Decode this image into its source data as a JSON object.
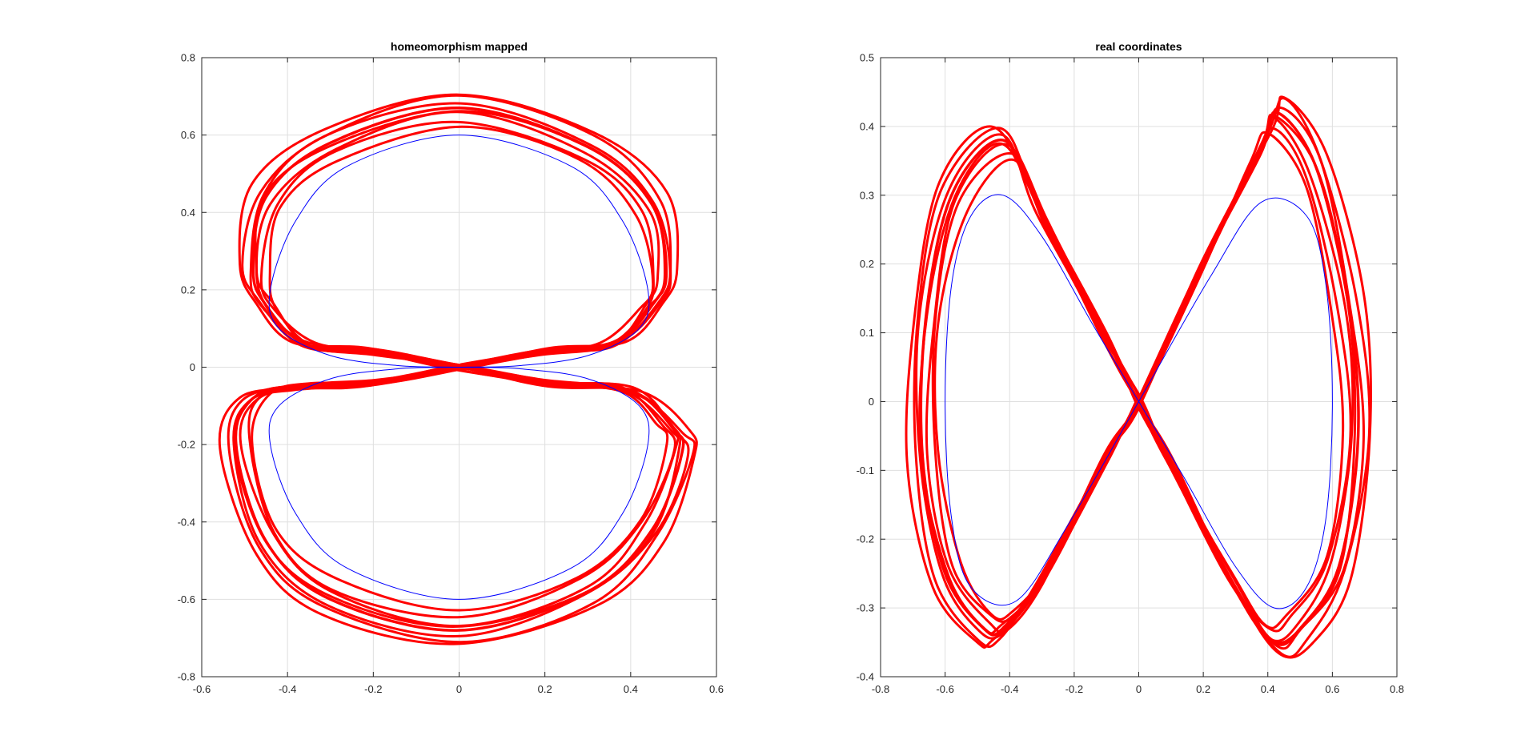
{
  "chart_data": [
    {
      "type": "line",
      "title": "homeomorphism mapped",
      "xlabel": "",
      "ylabel": "",
      "xlim": [
        -0.6,
        0.6
      ],
      "ylim": [
        -0.8,
        0.8
      ],
      "xticks": [
        -0.6,
        -0.4,
        -0.2,
        0,
        0.2,
        0.4,
        0.6
      ],
      "yticks": [
        -0.8,
        -0.6,
        -0.4,
        -0.2,
        0,
        0.2,
        0.4,
        0.6,
        0.8
      ],
      "xtick_labels": [
        "-0.6",
        "-0.4",
        "-0.2",
        "0",
        "0.2",
        "0.4",
        "0.6"
      ],
      "ytick_labels": [
        "-0.8",
        "-0.6",
        "-0.4",
        "-0.2",
        "0",
        "0.2",
        "0.4",
        "0.6",
        "0.8"
      ],
      "grid": true,
      "series": [
        {
          "color": "#ff0000",
          "style": "noisy closed loops around reference curve",
          "x": [
            0.0,
            0.2,
            0.36,
            0.45,
            0.48,
            0.45,
            0.3,
            0.0,
            -0.3,
            -0.45,
            -0.48,
            -0.45,
            -0.36,
            -0.2,
            0.0,
            0.2,
            0.4,
            0.5,
            0.52,
            0.45,
            0.3,
            0.0,
            -0.3,
            -0.45,
            -0.52,
            -0.48,
            -0.36,
            -0.2,
            0.0
          ],
          "y": [
            0.0,
            0.04,
            0.06,
            0.16,
            0.24,
            0.42,
            0.57,
            0.67,
            0.58,
            0.44,
            0.25,
            0.16,
            0.06,
            0.04,
            0.0,
            -0.04,
            -0.06,
            -0.16,
            -0.22,
            -0.42,
            -0.58,
            -0.68,
            -0.6,
            -0.45,
            -0.2,
            -0.08,
            -0.05,
            -0.04,
            0.0
          ]
        },
        {
          "color": "#0000ff",
          "style": "reference curve",
          "x": [
            0.0,
            0.14,
            0.3,
            0.42,
            0.44,
            0.38,
            0.26,
            0.0,
            -0.26,
            -0.38,
            -0.44,
            -0.42,
            -0.3,
            -0.14,
            0.0,
            0.14,
            0.3,
            0.42,
            0.44,
            0.38,
            0.26,
            0.0,
            -0.26,
            -0.38,
            -0.44,
            -0.42,
            -0.3,
            -0.14,
            0.0
          ],
          "y": [
            0.0,
            0.004,
            0.03,
            0.1,
            0.2,
            0.38,
            0.52,
            0.6,
            0.52,
            0.38,
            0.2,
            0.1,
            0.03,
            0.004,
            0.0,
            -0.004,
            -0.03,
            -0.1,
            -0.2,
            -0.38,
            -0.52,
            -0.6,
            -0.52,
            -0.38,
            -0.2,
            -0.1,
            -0.03,
            -0.004,
            0.0
          ]
        }
      ]
    },
    {
      "type": "line",
      "title": "real coordinates",
      "xlabel": "",
      "ylabel": "",
      "xlim": [
        -0.8,
        0.8
      ],
      "ylim": [
        -0.4,
        0.5
      ],
      "xticks": [
        -0.8,
        -0.6,
        -0.4,
        -0.2,
        0,
        0.2,
        0.4,
        0.6,
        0.8
      ],
      "yticks": [
        -0.4,
        -0.3,
        -0.2,
        -0.1,
        0,
        0.1,
        0.2,
        0.3,
        0.4,
        0.5
      ],
      "xtick_labels": [
        "-0.8",
        "-0.6",
        "-0.4",
        "-0.2",
        "0",
        "0.2",
        "0.4",
        "0.6",
        "0.8"
      ],
      "ytick_labels": [
        "-0.4",
        "-0.3",
        "-0.2",
        "-0.1",
        "0",
        "0.1",
        "0.2",
        "0.3",
        "0.4",
        "0.5"
      ],
      "grid": true,
      "series": [
        {
          "color": "#ff0000",
          "style": "noisy lemniscate loops around reference curve",
          "x": [
            0.0,
            0.2,
            0.38,
            0.43,
            0.55,
            0.65,
            0.68,
            0.62,
            0.5,
            0.42,
            0.3,
            0.1,
            0.0,
            -0.1,
            -0.3,
            -0.42,
            -0.58,
            -0.66,
            -0.67,
            -0.6,
            -0.48,
            -0.42,
            -0.3,
            -0.1,
            0.0
          ],
          "y": [
            0.0,
            0.2,
            0.37,
            0.42,
            0.34,
            0.14,
            -0.05,
            -0.24,
            -0.33,
            -0.35,
            -0.27,
            -0.09,
            0.0,
            0.09,
            0.27,
            0.38,
            0.3,
            0.12,
            -0.08,
            -0.25,
            -0.33,
            -0.33,
            -0.26,
            -0.08,
            0.0
          ]
        },
        {
          "color": "#0000ff",
          "style": "reference curve",
          "x": [
            0.0,
            0.22,
            0.38,
            0.52,
            0.58,
            0.6,
            0.58,
            0.52,
            0.42,
            0.3,
            0.14,
            0.0,
            -0.14,
            -0.3,
            -0.42,
            -0.52,
            -0.58,
            -0.6,
            -0.58,
            -0.52,
            -0.38,
            -0.22,
            0.0
          ],
          "y": [
            0.0,
            0.18,
            0.29,
            0.27,
            0.17,
            0.0,
            -0.17,
            -0.27,
            -0.3,
            -0.24,
            -0.11,
            0.0,
            0.11,
            0.24,
            0.3,
            0.27,
            0.17,
            0.0,
            -0.17,
            -0.27,
            -0.29,
            -0.18,
            0.0
          ]
        }
      ]
    }
  ]
}
